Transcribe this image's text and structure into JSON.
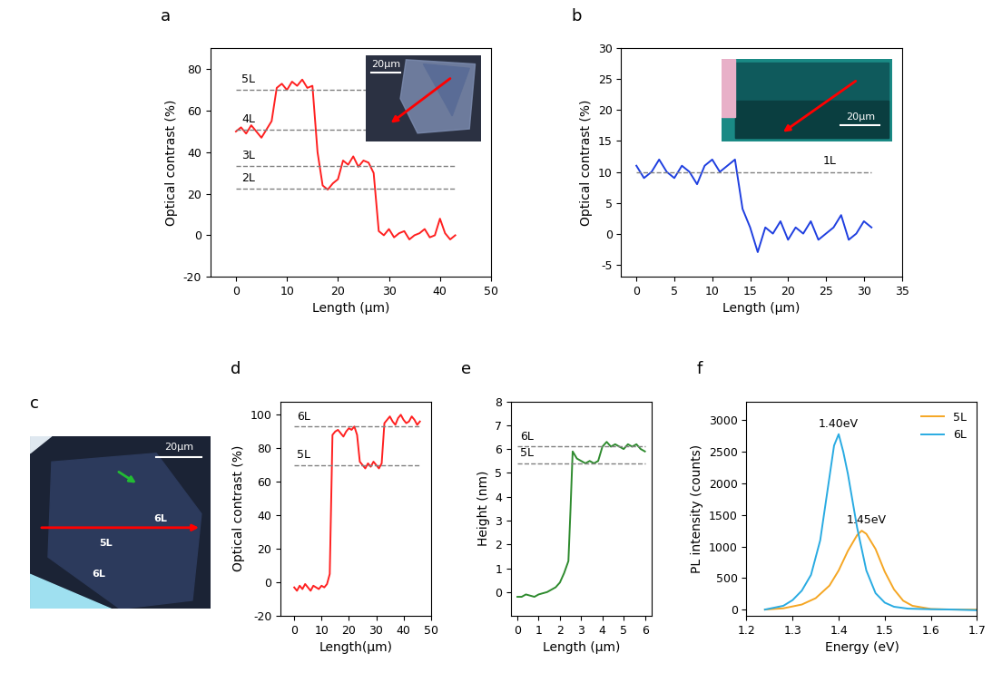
{
  "chart_data": [
    {
      "panel": "a",
      "type": "line",
      "x_label": "Length (μm)",
      "y_label": "Optical contrast (%)",
      "xlim": [
        -5,
        50
      ],
      "xticks": [
        0,
        10,
        20,
        30,
        40,
        50
      ],
      "ylim": [
        -20,
        90
      ],
      "yticks": [
        -20,
        0,
        20,
        40,
        60,
        80
      ],
      "series": [
        {
          "color": "#ff2020",
          "x": [
            0,
            1,
            2,
            3,
            4,
            5,
            6,
            7,
            8,
            9,
            10,
            11,
            12,
            13,
            14,
            15,
            16,
            17,
            18,
            19,
            20,
            21,
            22,
            23,
            24,
            25,
            26,
            27,
            28,
            29,
            30,
            31,
            32,
            33,
            34,
            35,
            36,
            37,
            38,
            39,
            40,
            41,
            42,
            43
          ],
          "values": [
            50,
            52,
            49,
            53,
            50,
            47,
            51,
            55,
            71,
            73,
            70,
            74,
            72,
            75,
            71,
            72,
            40,
            24,
            22,
            25,
            27,
            36,
            34,
            38,
            33,
            36,
            35,
            30,
            2,
            0,
            3,
            -1,
            1,
            2,
            -2,
            0,
            1,
            3,
            -1,
            0,
            8,
            1,
            -2,
            0
          ]
        }
      ],
      "reference_lines": [
        {
          "label": "5L",
          "value": 70
        },
        {
          "label": "4L",
          "value": 51
        },
        {
          "label": "3L",
          "value": 33.5
        },
        {
          "label": "2L",
          "value": 22.5
        }
      ],
      "inset_scale_bar": "20μm"
    },
    {
      "panel": "b",
      "type": "line",
      "x_label": "Length (μm)",
      "y_label": "Optical contrast (%)",
      "xlim": [
        -2,
        35
      ],
      "xticks": [
        0,
        5,
        10,
        15,
        20,
        25,
        30,
        35
      ],
      "ylim": [
        -7,
        30
      ],
      "yticks": [
        -5,
        0,
        5,
        10,
        15,
        20,
        25,
        30
      ],
      "series": [
        {
          "color": "#1f3fe0",
          "x": [
            0,
            1,
            2,
            3,
            4,
            5,
            6,
            7,
            8,
            9,
            10,
            11,
            12,
            13,
            14,
            15,
            16,
            17,
            18,
            19,
            20,
            21,
            22,
            23,
            24,
            25,
            26,
            27,
            28,
            29,
            30,
            31
          ],
          "values": [
            11,
            9,
            10,
            12,
            10,
            9,
            11,
            10,
            8,
            11,
            12,
            10,
            11,
            12,
            4,
            1,
            -3,
            1,
            0,
            2,
            -1,
            1,
            0,
            2,
            -1,
            0,
            1,
            3,
            -1,
            0,
            2,
            1
          ]
        }
      ],
      "reference_lines": [
        {
          "label": "1L",
          "value": 10
        }
      ],
      "inset_scale_bar": "20μm"
    },
    {
      "panel": "c",
      "type": "image",
      "scale_bar": "20μm",
      "labels": [
        "6L",
        "5L",
        "6L"
      ]
    },
    {
      "panel": "d",
      "type": "line",
      "x_label": "Length(μm)",
      "y_label": "Optical contrast (%)",
      "xlim": [
        -5,
        50
      ],
      "xticks": [
        0,
        10,
        20,
        30,
        40,
        50
      ],
      "ylim": [
        -20,
        108
      ],
      "yticks": [
        -20,
        0,
        20,
        40,
        60,
        80,
        100
      ],
      "series": [
        {
          "color": "#ff2020",
          "x": [
            0,
            1,
            2,
            3,
            4,
            5,
            6,
            7,
            8,
            9,
            10,
            11,
            12,
            13,
            14,
            15,
            16,
            17,
            18,
            19,
            20,
            21,
            22,
            23,
            24,
            25,
            26,
            27,
            28,
            29,
            30,
            31,
            32,
            33,
            34,
            35,
            36,
            37,
            38,
            39,
            40,
            41,
            42,
            43,
            44,
            45,
            46
          ],
          "values": [
            -3,
            -5,
            -2,
            -4,
            -1,
            -3,
            -5,
            -2,
            -3,
            -4,
            -2,
            -3,
            -1,
            5,
            88,
            90,
            91,
            89,
            87,
            90,
            92,
            91,
            93,
            88,
            72,
            70,
            68,
            71,
            69,
            72,
            70,
            68,
            71,
            95,
            97,
            99,
            96,
            94,
            98,
            100,
            97,
            95,
            96,
            99,
            97,
            94,
            96
          ]
        }
      ],
      "reference_lines": [
        {
          "label": "6L",
          "value": 93
        },
        {
          "label": "5L",
          "value": 70
        }
      ]
    },
    {
      "panel": "e",
      "type": "line",
      "x_label": "Length (μm)",
      "y_label": "Height (nm)",
      "xlim": [
        -0.3,
        6.3
      ],
      "xticks": [
        0,
        1,
        2,
        3,
        4,
        5,
        6
      ],
      "ylim": [
        -1,
        8
      ],
      "yticks": [
        0,
        1,
        2,
        3,
        4,
        5,
        6,
        7,
        8
      ],
      "series": [
        {
          "color": "#2e8b2e",
          "x": [
            0,
            0.2,
            0.4,
            0.6,
            0.8,
            1.0,
            1.2,
            1.4,
            1.6,
            1.8,
            2.0,
            2.2,
            2.4,
            2.5,
            2.6,
            2.8,
            3.0,
            3.2,
            3.4,
            3.6,
            3.8,
            4.0,
            4.2,
            4.4,
            4.6,
            4.8,
            5.0,
            5.2,
            5.4,
            5.6,
            5.8,
            6.0
          ],
          "values": [
            -0.2,
            -0.2,
            -0.1,
            -0.15,
            -0.2,
            -0.1,
            -0.05,
            0.0,
            0.1,
            0.2,
            0.4,
            0.8,
            1.3,
            3.5,
            5.9,
            5.6,
            5.5,
            5.4,
            5.5,
            5.4,
            5.5,
            6.1,
            6.3,
            6.1,
            6.2,
            6.1,
            6.0,
            6.2,
            6.1,
            6.2,
            6.0,
            5.9
          ]
        }
      ],
      "reference_lines": [
        {
          "label": "6L",
          "value": 6.1
        },
        {
          "label": "5L",
          "value": 5.4
        }
      ]
    },
    {
      "panel": "f",
      "type": "line",
      "x_label": "Energy (eV)",
      "y_label": "PL intensity (counts)",
      "xlim": [
        1.2,
        1.7
      ],
      "xticks": [
        1.2,
        1.3,
        1.4,
        1.5,
        1.6,
        1.7
      ],
      "ylim": [
        -100,
        3300
      ],
      "yticks": [
        0,
        500,
        1000,
        1500,
        2000,
        2500,
        3000
      ],
      "legend": "upper right",
      "series": [
        {
          "name": "5L",
          "color": "#f5a623",
          "x": [
            1.24,
            1.28,
            1.32,
            1.35,
            1.38,
            1.4,
            1.42,
            1.44,
            1.45,
            1.46,
            1.48,
            1.5,
            1.52,
            1.54,
            1.56,
            1.6,
            1.65,
            1.7
          ],
          "values": [
            0,
            20,
            80,
            180,
            380,
            620,
            930,
            1180,
            1250,
            1200,
            960,
            600,
            320,
            140,
            60,
            10,
            0,
            0
          ]
        },
        {
          "name": "6L",
          "color": "#29abe2",
          "x": [
            1.24,
            1.26,
            1.28,
            1.3,
            1.32,
            1.34,
            1.36,
            1.38,
            1.39,
            1.4,
            1.41,
            1.42,
            1.44,
            1.46,
            1.48,
            1.5,
            1.52,
            1.55,
            1.6,
            1.65,
            1.7
          ],
          "values": [
            0,
            30,
            60,
            150,
            300,
            550,
            1100,
            2100,
            2600,
            2780,
            2500,
            2150,
            1300,
            620,
            260,
            110,
            45,
            15,
            5,
            0,
            -10
          ]
        }
      ],
      "annotations": [
        {
          "text": "1.40eV",
          "x": 1.4,
          "y": 2780
        },
        {
          "text": "1.45eV",
          "x": 1.45,
          "y": 1250
        }
      ]
    }
  ]
}
